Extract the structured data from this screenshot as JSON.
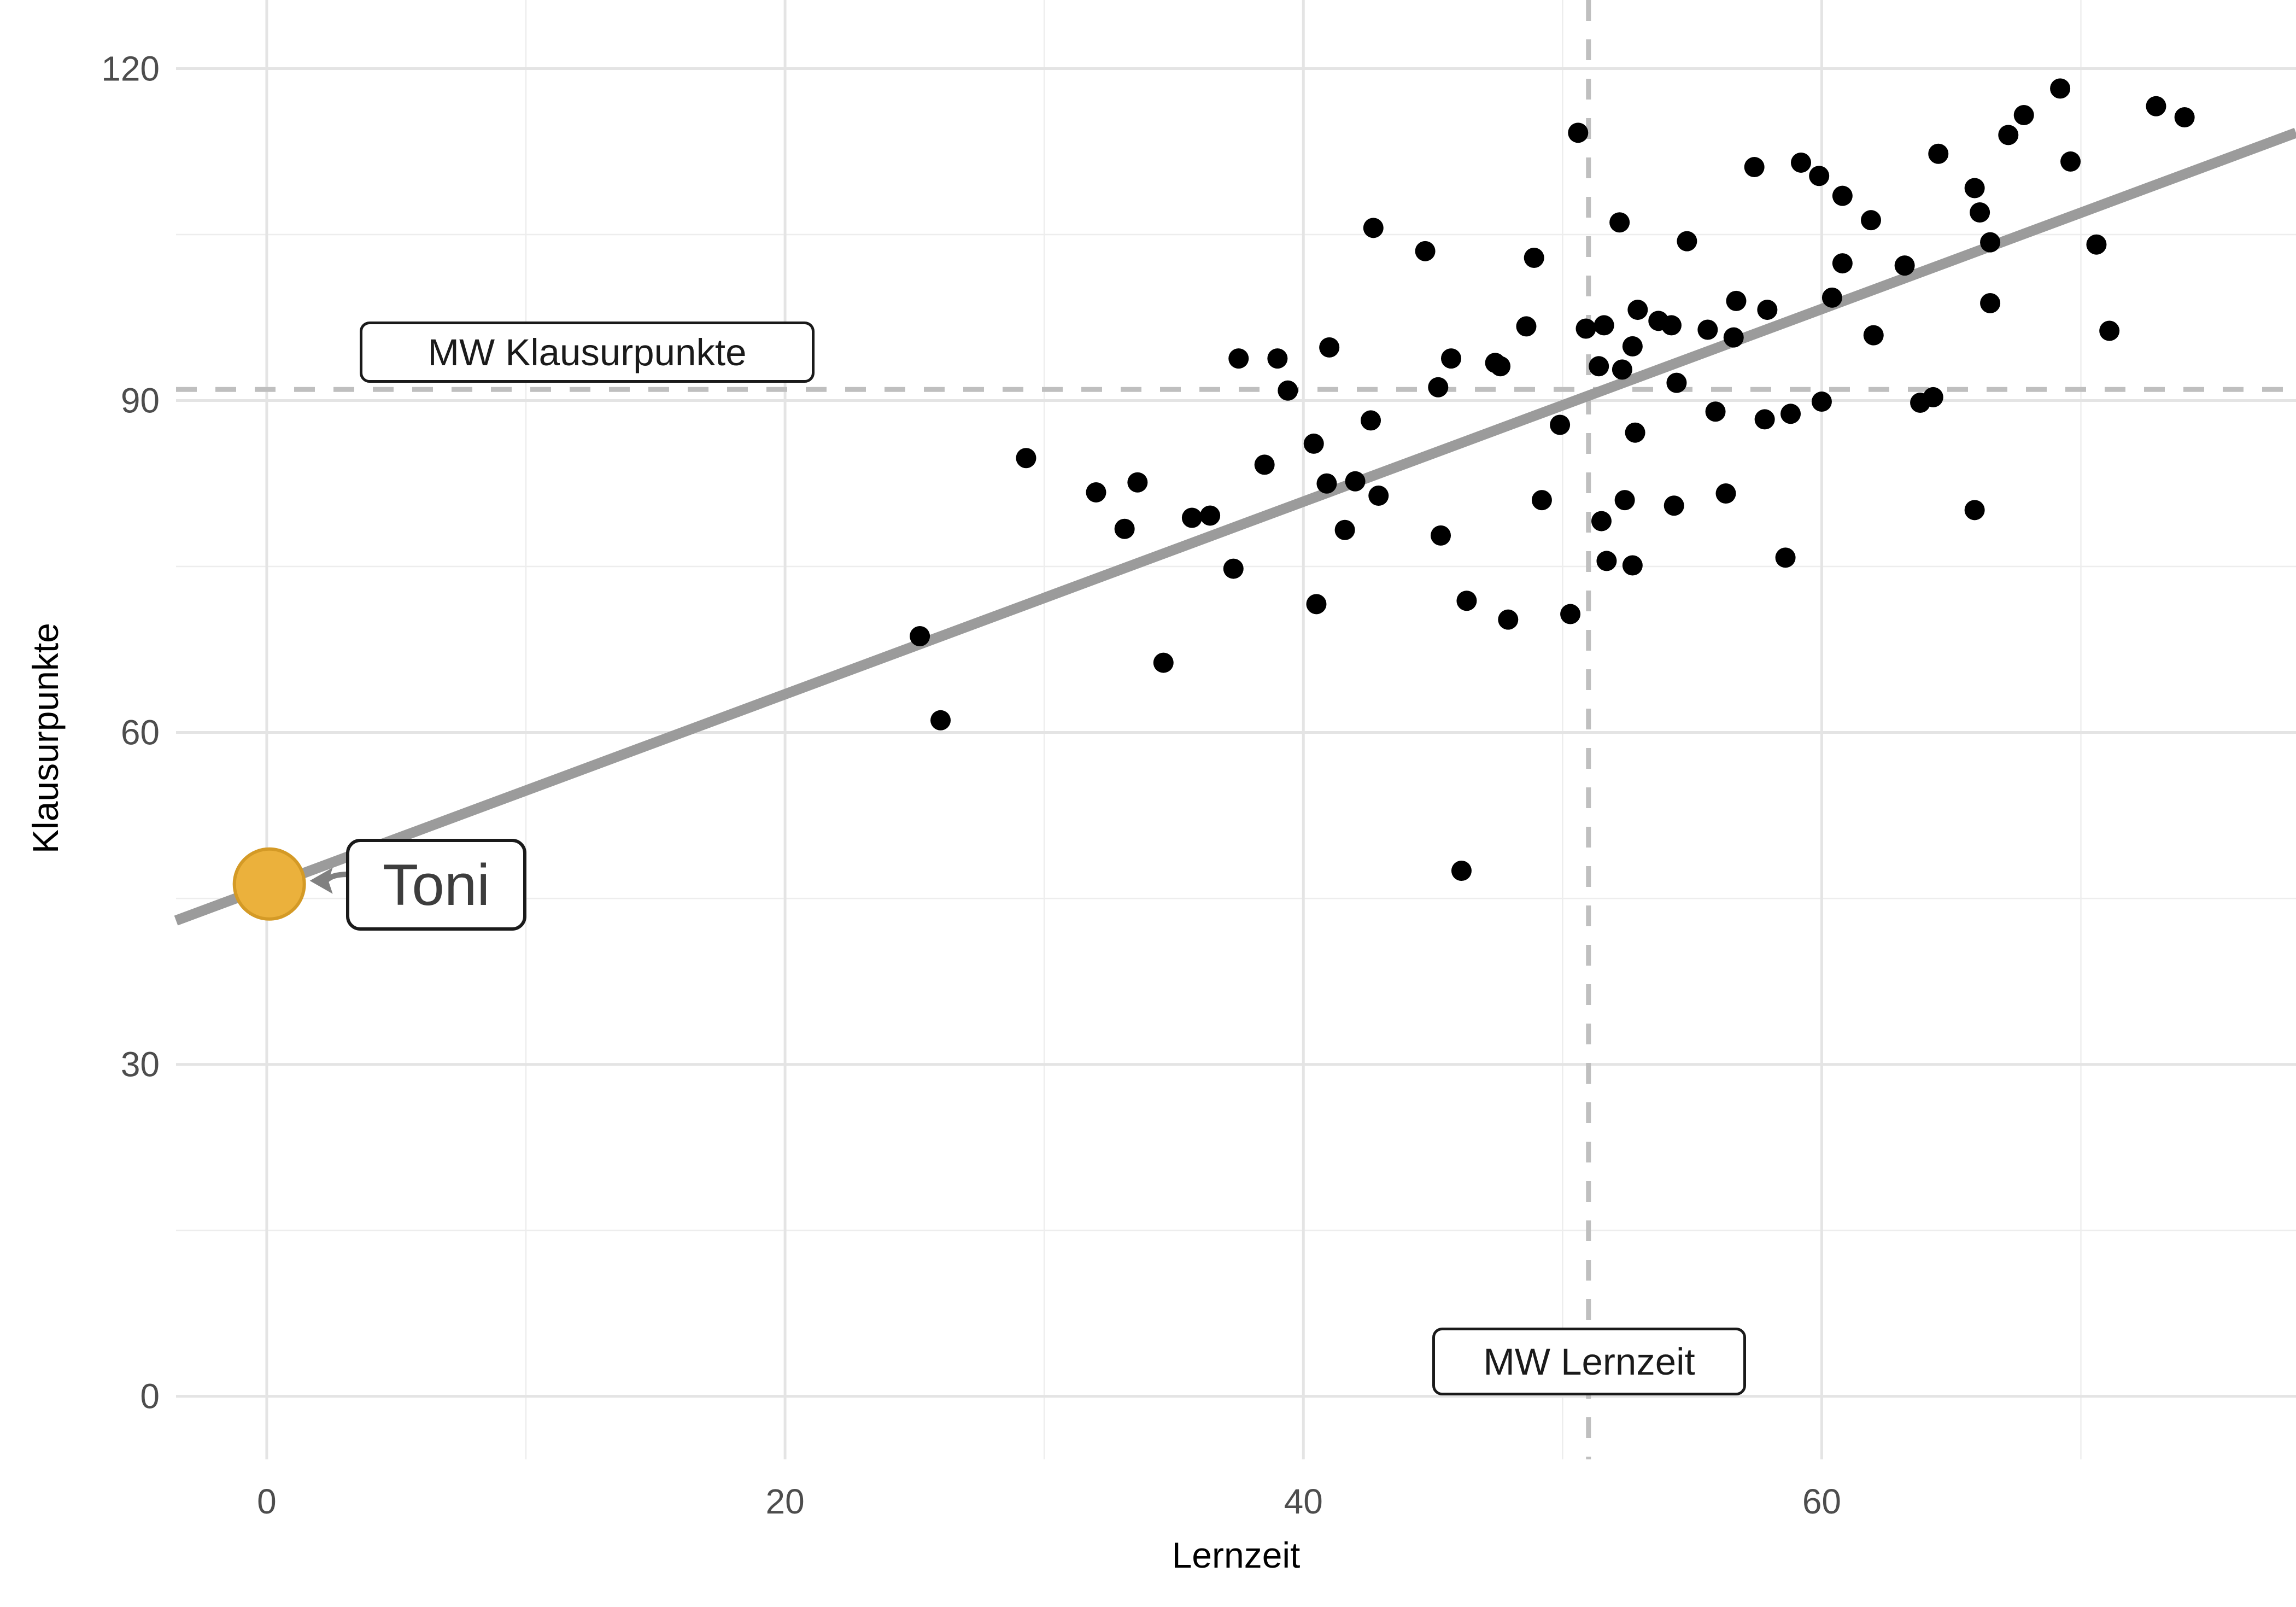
{
  "chart_data": {
    "type": "scatter",
    "title": "",
    "xlabel": "Lernzeit",
    "ylabel": "Klausurpunkte",
    "xlim": [
      -3.5,
      78.3
    ],
    "ylim": [
      -5.7,
      126.2
    ],
    "x_ticks": [
      {
        "value": 0,
        "label": "0"
      },
      {
        "value": 20,
        "label": "20"
      },
      {
        "value": 40,
        "label": "40"
      },
      {
        "value": 60,
        "label": "60"
      }
    ],
    "y_ticks": [
      {
        "value": 0,
        "label": "0"
      },
      {
        "value": 30,
        "label": "30"
      },
      {
        "value": 60,
        "label": "60"
      },
      {
        "value": 90,
        "label": "90"
      },
      {
        "value": 120,
        "label": "120"
      }
    ],
    "x_minor_gridlines": [
      10,
      30,
      50,
      70
    ],
    "y_minor_gridlines": [
      15,
      45,
      75,
      105
    ],
    "grid": "on",
    "legend": "none",
    "mean_x": {
      "value": 51,
      "label": "MW Lernzeit"
    },
    "mean_y": {
      "value": 91,
      "label": "MW Klausurpunkte"
    },
    "regression_line": {
      "x0": -3.5,
      "y0": 43.0,
      "x1": 78.3,
      "y1": 114.2
    },
    "highlight_point": {
      "name": "Toni",
      "x": 0.1,
      "y": 46.3,
      "label": "Toni"
    },
    "points": [
      [
        69.2,
        118.2
      ],
      [
        72.9,
        116.6
      ],
      [
        74.0,
        115.6
      ],
      [
        67.8,
        115.8
      ],
      [
        67.2,
        114.0
      ],
      [
        50.6,
        114.2
      ],
      [
        64.5,
        112.3
      ],
      [
        69.6,
        111.6
      ],
      [
        57.4,
        111.1
      ],
      [
        59.2,
        111.5
      ],
      [
        59.9,
        110.3
      ],
      [
        60.8,
        108.5
      ],
      [
        61.9,
        106.3
      ],
      [
        65.9,
        109.2
      ],
      [
        66.1,
        107.0
      ],
      [
        42.7,
        105.6
      ],
      [
        44.7,
        103.5
      ],
      [
        52.2,
        106.1
      ],
      [
        54.8,
        104.4
      ],
      [
        70.6,
        104.1
      ],
      [
        66.5,
        104.3
      ],
      [
        60.8,
        102.4
      ],
      [
        63.2,
        102.2
      ],
      [
        48.9,
        102.9
      ],
      [
        52.9,
        98.2
      ],
      [
        53.7,
        97.2
      ],
      [
        54.2,
        96.8
      ],
      [
        48.6,
        96.7
      ],
      [
        50.9,
        96.5
      ],
      [
        51.6,
        96.8
      ],
      [
        55.6,
        96.4
      ],
      [
        56.7,
        99.0
      ],
      [
        57.9,
        98.2
      ],
      [
        60.4,
        99.3
      ],
      [
        66.5,
        98.8
      ],
      [
        71.1,
        96.3
      ],
      [
        47.6,
        93.1
      ],
      [
        51.4,
        93.1
      ],
      [
        52.3,
        92.8
      ],
      [
        54.4,
        91.6
      ],
      [
        41.0,
        94.8
      ],
      [
        45.7,
        93.8
      ],
      [
        47.4,
        93.4
      ],
      [
        37.5,
        93.8
      ],
      [
        39.0,
        93.8
      ],
      [
        39.4,
        90.9
      ],
      [
        45.2,
        91.2
      ],
      [
        52.7,
        94.9
      ],
      [
        56.6,
        95.7
      ],
      [
        62.0,
        95.9
      ],
      [
        63.8,
        89.8
      ],
      [
        64.3,
        90.3
      ],
      [
        60.0,
        89.9
      ],
      [
        57.8,
        88.3
      ],
      [
        58.8,
        88.8
      ],
      [
        55.9,
        89.0
      ],
      [
        49.9,
        87.8
      ],
      [
        52.8,
        87.1
      ],
      [
        42.6,
        88.2
      ],
      [
        40.4,
        86.1
      ],
      [
        38.5,
        84.2
      ],
      [
        40.9,
        82.5
      ],
      [
        42.0,
        82.7
      ],
      [
        29.3,
        84.8
      ],
      [
        32.0,
        81.7
      ],
      [
        33.6,
        82.6
      ],
      [
        35.7,
        79.4
      ],
      [
        36.4,
        79.6
      ],
      [
        33.1,
        78.4
      ],
      [
        41.6,
        78.3
      ],
      [
        49.2,
        81.0
      ],
      [
        52.4,
        81.0
      ],
      [
        51.5,
        79.1
      ],
      [
        54.3,
        80.5
      ],
      [
        56.3,
        81.6
      ],
      [
        42.9,
        81.4
      ],
      [
        65.9,
        80.1
      ],
      [
        45.3,
        77.8
      ],
      [
        51.7,
        75.5
      ],
      [
        52.7,
        75.1
      ],
      [
        58.6,
        75.8
      ],
      [
        37.3,
        74.8
      ],
      [
        46.3,
        71.9
      ],
      [
        47.9,
        70.2
      ],
      [
        50.3,
        70.7
      ],
      [
        40.5,
        71.6
      ],
      [
        34.6,
        66.3
      ],
      [
        25.2,
        68.7
      ],
      [
        26.0,
        61.1
      ],
      [
        46.1,
        47.5
      ]
    ],
    "colors": {
      "point": "#000000",
      "highlight_fill": "#ebb13c",
      "highlight_stroke": "#d49a26",
      "regression_line": "#9b9b9b",
      "mean_dashed": "#bfbfbf",
      "grid_major": "#e4e4e4",
      "grid_minor": "#ededed",
      "tick_label": "#4d4d4d",
      "axis_title": "#000000",
      "arrow": "#808080"
    }
  },
  "annotations": {
    "mw_y_label": "MW Klausurpunkte",
    "mw_x_label": "MW Lernzeit",
    "toni_label": "Toni"
  },
  "axis": {
    "x_title": "Lernzeit",
    "y_title": "Klausurpunkte"
  }
}
